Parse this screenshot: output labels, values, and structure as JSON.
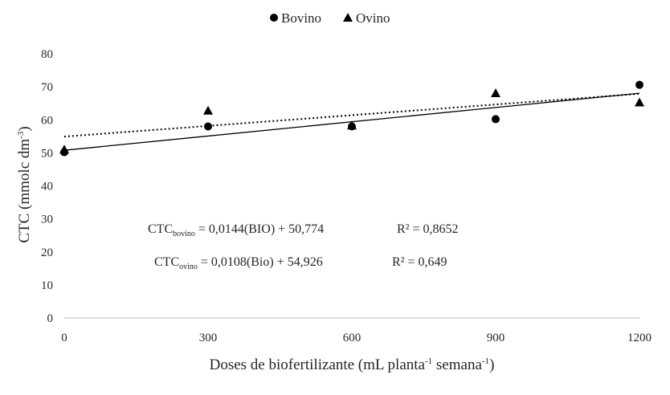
{
  "chart_data": {
    "type": "scatter",
    "title": "",
    "xlabel_main": "Doses de biofertilizante (mL planta",
    "xlabel_sup1": "-1",
    "xlabel_mid": " semana",
    "xlabel_sup2": "-1",
    "xlabel_end": ")",
    "ylabel_main": "CTC (mmolc dm",
    "ylabel_sup": "-3",
    "ylabel_end": ")",
    "xlim": [
      0,
      1200
    ],
    "ylim": [
      0,
      80
    ],
    "x_ticks": [
      "0",
      "300",
      "600",
      "900",
      "1200"
    ],
    "y_ticks": [
      "0",
      "10",
      "20",
      "30",
      "40",
      "50",
      "60",
      "70",
      "80"
    ],
    "legend_position": "top-center",
    "series": [
      {
        "name": "Bovino",
        "marker": "circle",
        "color": "#000000",
        "x": [
          0,
          300,
          600,
          900,
          1200
        ],
        "y": [
          50.2,
          58.0,
          58.0,
          60.2,
          70.6
        ],
        "trendline": {
          "slope": 0.0144,
          "intercept": 50.774,
          "style": "solid"
        }
      },
      {
        "name": "Ovino",
        "marker": "triangle",
        "color": "#000000",
        "x": [
          0,
          300,
          600,
          900,
          1200
        ],
        "y": [
          51.0,
          62.8,
          58.3,
          68.1,
          65.3
        ],
        "trendline": {
          "slope": 0.0108,
          "intercept": 54.926,
          "style": "dotted"
        }
      }
    ],
    "annotations": {
      "bovino": {
        "prefix": "CTC",
        "sub": "bovino",
        "eq": " = 0,0144(BIO)  + 50,774",
        "r2": "R² = 0,8652"
      },
      "ovino": {
        "prefix": "CTC",
        "sub": "ovino",
        "eq": " = 0,0108(Bio)  + 54,926",
        "r2": "R² = 0,649"
      }
    }
  }
}
